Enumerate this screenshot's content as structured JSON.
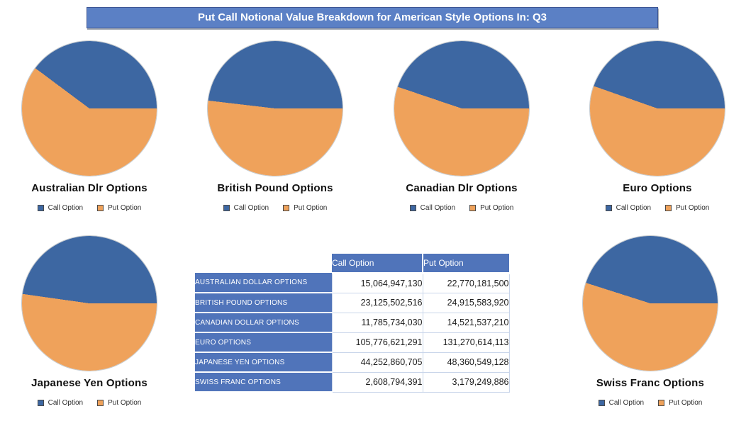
{
  "title": "Put Call Notional Value Breakdown for American Style Options In: Q3",
  "colors": {
    "call": "#3d67a2",
    "put": "#efa25b",
    "banner": "#5b80c5",
    "table_header": "#5074ba"
  },
  "legend": {
    "call_label": "Call Option",
    "put_label": "Put Option"
  },
  "chart_data": [
    {
      "type": "pie",
      "title": "Australian Dlr Options",
      "labels": [
        "Call Option",
        "Put Option"
      ],
      "values": [
        15064947130,
        22770181500
      ]
    },
    {
      "type": "pie",
      "title": "British Pound Options",
      "labels": [
        "Call Option",
        "Put Option"
      ],
      "values": [
        23125502516,
        24915583920
      ]
    },
    {
      "type": "pie",
      "title": "Canadian Dlr Options",
      "labels": [
        "Call Option",
        "Put Option"
      ],
      "values": [
        11785734030,
        14521537210
      ]
    },
    {
      "type": "pie",
      "title": "Euro Options",
      "labels": [
        "Call Option",
        "Put Option"
      ],
      "values": [
        105776621291,
        131270614113
      ]
    },
    {
      "type": "pie",
      "title": "Japanese Yen Options",
      "labels": [
        "Call Option",
        "Put Option"
      ],
      "values": [
        44252860705,
        48360549128
      ]
    },
    {
      "type": "pie",
      "title": "Swiss Franc Options",
      "labels": [
        "Call Option",
        "Put Option"
      ],
      "values": [
        2608794391,
        3179249886
      ]
    }
  ],
  "table": {
    "col_headers": [
      "Call Option",
      "Put Option"
    ],
    "rows": [
      {
        "label": "AUSTRALIAN DOLLAR OPTIONS",
        "call": "15,064,947,130",
        "put": "22,770,181,500"
      },
      {
        "label": "BRITISH POUND OPTIONS",
        "call": "23,125,502,516",
        "put": "24,915,583,920"
      },
      {
        "label": "CANADIAN DOLLAR OPTIONS",
        "call": "11,785,734,030",
        "put": "14,521,537,210"
      },
      {
        "label": "EURO OPTIONS",
        "call": "105,776,621,291",
        "put": "131,270,614,113"
      },
      {
        "label": "JAPANESE YEN OPTIONS",
        "call": "44,252,860,705",
        "put": "48,360,549,128"
      },
      {
        "label": "SWISS FRANC OPTIONS",
        "call": "2,608,794,391",
        "put": "3,179,249,886"
      }
    ]
  }
}
